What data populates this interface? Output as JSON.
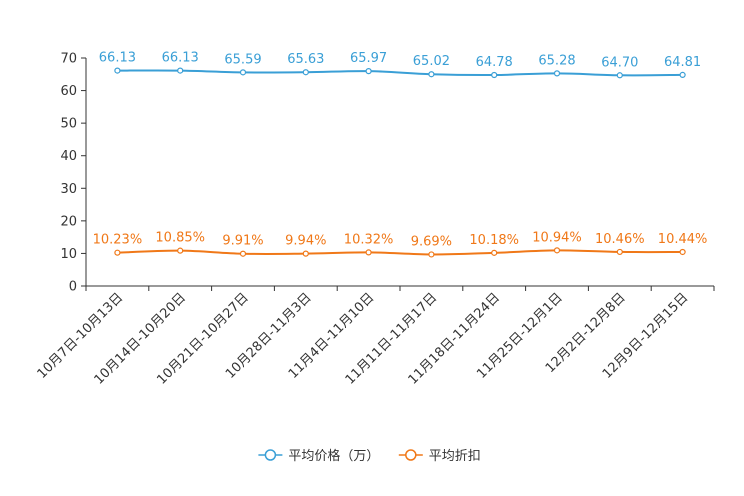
{
  "chart_data": {
    "type": "line",
    "title": "",
    "xlabel": "",
    "ylabel": "",
    "ylim": [
      0,
      70
    ],
    "yticks": [
      0,
      10,
      20,
      30,
      40,
      50,
      60,
      70
    ],
    "grid": false,
    "legend_position": "bottom-center",
    "categories": [
      "10月7日-10月13日",
      "10月14日-10月20日",
      "10月21日-10月27日",
      "10月28日-11月3日",
      "11月4日-11月10日",
      "11月11日-11月17日",
      "11月18日-11月24日",
      "11月25日-12月1日",
      "12月2日-12月8日",
      "12月9日-12月15日"
    ],
    "series": [
      {
        "name": "平均价格（万）",
        "color": "#3a9fd6",
        "values": [
          66.13,
          66.13,
          65.59,
          65.63,
          65.97,
          65.02,
          64.78,
          65.28,
          64.7,
          64.81
        ],
        "labels": [
          "66.13",
          "66.13",
          "65.59",
          "65.63",
          "65.97",
          "65.02",
          "64.78",
          "65.28",
          "64.70",
          "64.81"
        ]
      },
      {
        "name": "平均折扣",
        "color": "#f07818",
        "values": [
          10.23,
          10.85,
          9.91,
          9.94,
          10.32,
          9.69,
          10.18,
          10.94,
          10.46,
          10.44
        ],
        "labels": [
          "10.23%",
          "10.85%",
          "9.91%",
          "9.94%",
          "10.32%",
          "9.69%",
          "10.18%",
          "10.94%",
          "10.46%",
          "10.44%"
        ]
      }
    ]
  }
}
